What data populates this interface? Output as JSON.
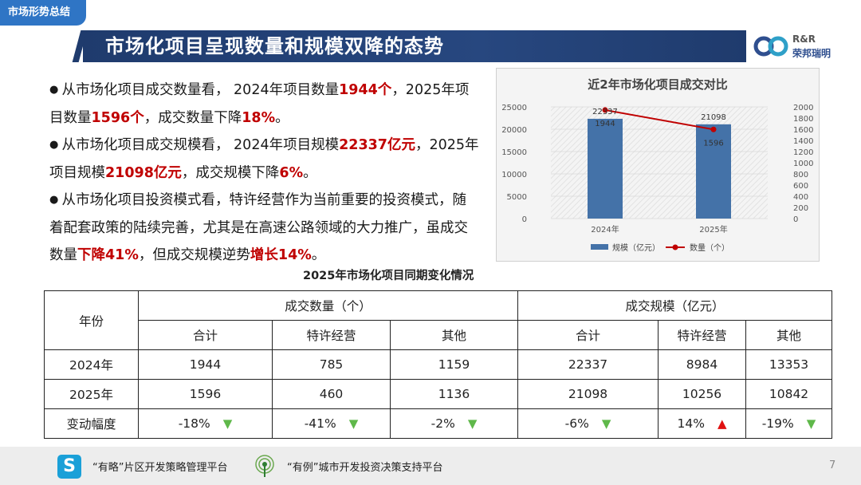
{
  "section_tag": "市场形势总结",
  "title": "市场化项目呈现数量和规模双降的态势",
  "logo": {
    "line1": "R&R",
    "line2": "荣邦瑞明"
  },
  "bullets": [
    {
      "segments": [
        {
          "text": "从市场化项目成交数量看，  2024年项目数量",
          "hl": false
        },
        {
          "text": "1944个",
          "hl": true
        },
        {
          "text": "，2025年项目数量",
          "hl": false
        },
        {
          "text": "1596个",
          "hl": true
        },
        {
          "text": "，成交数量下降",
          "hl": false
        },
        {
          "text": "18%",
          "hl": true
        },
        {
          "text": "。",
          "hl": false
        }
      ]
    },
    {
      "segments": [
        {
          "text": "从市场化项目成交规模看，  2024年项目规模",
          "hl": false
        },
        {
          "text": "22337亿元",
          "hl": true
        },
        {
          "text": "，2025年项目规模",
          "hl": false
        },
        {
          "text": "21098亿元",
          "hl": true
        },
        {
          "text": "，成交规模下降",
          "hl": false
        },
        {
          "text": "6%",
          "hl": true
        },
        {
          "text": "。",
          "hl": false
        }
      ]
    },
    {
      "segments": [
        {
          "text": "从市场化项目投资模式看，特许经营作为当前重要的投资模式，随着配套政策的陆续完善，尤其是在高速公路领域的大力推广，虽成交数量",
          "hl": false
        },
        {
          "text": "下降41%",
          "hl": true
        },
        {
          "text": "，但成交规模逆势",
          "hl": false
        },
        {
          "text": "增长14%",
          "hl": true
        },
        {
          "text": "。",
          "hl": false
        }
      ]
    }
  ],
  "chart_data": {
    "type": "bar",
    "title": "近2年市场化项目成交对比",
    "categories": [
      "2024年",
      "2025年"
    ],
    "series": [
      {
        "name": "规模（亿元）",
        "type": "bar",
        "axis": "left",
        "values": [
          22337,
          21098
        ],
        "color": "#4472a8"
      },
      {
        "name": "数量（个）",
        "type": "line",
        "axis": "right",
        "values": [
          1944,
          1596
        ],
        "color": "#c00000"
      }
    ],
    "ylim_left": [
      0,
      25000
    ],
    "yticks_left": [
      "0",
      "5000",
      "10000",
      "15000",
      "20000",
      "25000"
    ],
    "ylim_right": [
      0,
      2000
    ],
    "yticks_right": [
      "0",
      "200",
      "400",
      "600",
      "800",
      "1000",
      "1200",
      "1400",
      "1600",
      "1800",
      "2000"
    ],
    "legend": "bottom"
  },
  "table": {
    "title": "2025年市场化项目同期变化情况",
    "year_header": "年份",
    "group1": "成交数量（个）",
    "group2": "成交规模（亿元）",
    "sub_headers": [
      "合计",
      "特许经营",
      "其他",
      "合计",
      "特许经营",
      "其他"
    ],
    "rows": [
      {
        "label": "2024年",
        "cells": [
          "1944",
          "785",
          "1159",
          "22337",
          "8984",
          "13353"
        ]
      },
      {
        "label": "2025年",
        "cells": [
          "1596",
          "460",
          "1136",
          "21098",
          "10256",
          "10842"
        ]
      }
    ],
    "change_row": {
      "label": "变动幅度",
      "cells": [
        "-18%",
        "-41%",
        "-2%",
        "-6%",
        "14%",
        "-19%"
      ],
      "dirs": [
        "down",
        "down",
        "down",
        "down",
        "up",
        "down"
      ]
    }
  },
  "footer": {
    "item1": "“有略”片区开发策略管理平台",
    "item2": "“有例”城市开发投资决策支持平台",
    "page": "7"
  }
}
